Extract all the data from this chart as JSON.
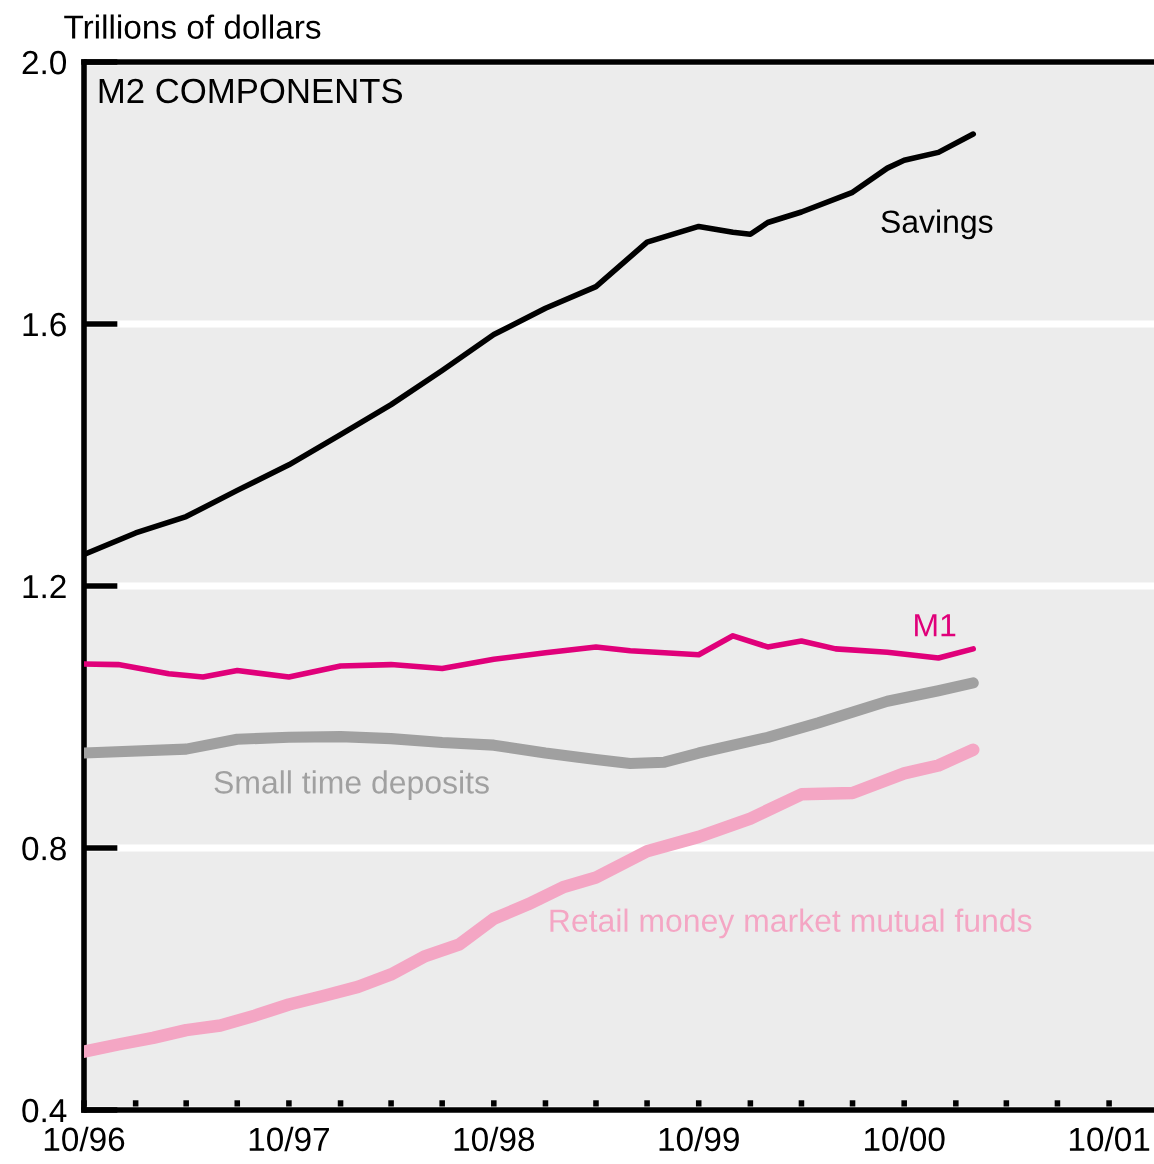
{
  "chart_data": {
    "type": "line",
    "title": "M2 COMPONENTS",
    "ylabel": "Trillions of dollars",
    "series": [
      {
        "name": "Savings",
        "color": "#000000",
        "x": [
          "1996-10",
          "1997-01",
          "1997-04",
          "1997-07",
          "1997-10",
          "1998-01",
          "1998-04",
          "1998-07",
          "1998-10",
          "1999-01",
          "1999-04",
          "1999-07",
          "1999-10",
          "1999-12",
          "2000-01",
          "2000-02",
          "2000-04",
          "2000-07",
          "2000-09",
          "2000-10",
          "2000-12",
          "2001-02"
        ],
        "values": [
          1.248,
          1.281,
          1.306,
          1.346,
          1.385,
          1.431,
          1.477,
          1.529,
          1.584,
          1.624,
          1.657,
          1.725,
          1.749,
          1.74,
          1.737,
          1.755,
          1.771,
          1.801,
          1.838,
          1.85,
          1.862,
          1.89
        ]
      },
      {
        "name": "M1",
        "color": "#e0007a",
        "x": [
          "1996-10",
          "1996-12",
          "1997-03",
          "1997-05",
          "1997-07",
          "1997-10",
          "1998-01",
          "1998-04",
          "1998-07",
          "1998-10",
          "1999-01",
          "1999-04",
          "1999-06",
          "1999-10",
          "1999-12",
          "2000-02",
          "2000-04",
          "2000-06",
          "2000-09",
          "2000-12",
          "2001-02"
        ],
        "values": [
          1.081,
          1.08,
          1.066,
          1.061,
          1.071,
          1.061,
          1.078,
          1.08,
          1.074,
          1.088,
          1.098,
          1.107,
          1.101,
          1.095,
          1.124,
          1.107,
          1.116,
          1.104,
          1.099,
          1.09,
          1.104
        ]
      },
      {
        "name": "Small time deposits",
        "color": "#a0a0a0",
        "x": [
          "1996-10",
          "1997-04",
          "1997-07",
          "1997-10",
          "1998-01",
          "1998-04",
          "1998-07",
          "1998-10",
          "1999-01",
          "1999-04",
          "1999-06",
          "1999-08",
          "1999-10",
          "2000-02",
          "2000-05",
          "2000-09",
          "2000-12",
          "2001-02"
        ],
        "values": [
          0.945,
          0.951,
          0.966,
          0.969,
          0.97,
          0.967,
          0.961,
          0.957,
          0.945,
          0.935,
          0.929,
          0.931,
          0.945,
          0.969,
          0.991,
          1.024,
          1.04,
          1.052
        ]
      },
      {
        "name": "Retail money market mutual funds",
        "color": "#f4a6c4",
        "x": [
          "1996-10",
          "1996-12",
          "1997-02",
          "1997-04",
          "1997-06",
          "1997-08",
          "1997-10",
          "1997-12",
          "1998-02",
          "1998-04",
          "1998-06",
          "1998-08",
          "1998-10",
          "1998-12",
          "1999-02",
          "1999-04",
          "1999-07",
          "1999-10",
          "2000-01",
          "2000-04",
          "2000-07",
          "2000-10",
          "2000-12",
          "2001-02"
        ],
        "values": [
          0.489,
          0.5,
          0.51,
          0.522,
          0.529,
          0.544,
          0.561,
          0.574,
          0.588,
          0.607,
          0.635,
          0.653,
          0.692,
          0.714,
          0.74,
          0.755,
          0.795,
          0.817,
          0.845,
          0.882,
          0.884,
          0.914,
          0.926,
          0.95
        ]
      }
    ],
    "xlim": [
      "1996-10",
      "2001-12-20"
    ],
    "xticks": [
      {
        "value": "1996-10",
        "label": "10/96"
      },
      {
        "value": "1997-01",
        "label": null
      },
      {
        "value": "1997-04",
        "label": null
      },
      {
        "value": "1997-07",
        "label": null
      },
      {
        "value": "1997-10",
        "label": "10/97"
      },
      {
        "value": "1998-01",
        "label": null
      },
      {
        "value": "1998-04",
        "label": null
      },
      {
        "value": "1998-07",
        "label": null
      },
      {
        "value": "1998-10",
        "label": "10/98"
      },
      {
        "value": "1999-01",
        "label": null
      },
      {
        "value": "1999-04",
        "label": null
      },
      {
        "value": "1999-07",
        "label": null
      },
      {
        "value": "1999-10",
        "label": "10/99"
      },
      {
        "value": "2000-01",
        "label": null
      },
      {
        "value": "2000-04",
        "label": null
      },
      {
        "value": "2000-07",
        "label": null
      },
      {
        "value": "2000-10",
        "label": "10/00"
      },
      {
        "value": "2001-01",
        "label": null
      },
      {
        "value": "2001-04",
        "label": null
      },
      {
        "value": "2001-07",
        "label": null
      },
      {
        "value": "2001-10",
        "label": "10/01"
      }
    ],
    "ylim": [
      0.4,
      2.0
    ],
    "yticks": [
      {
        "value": 0.4,
        "label": "0.4"
      },
      {
        "value": 0.8,
        "label": "0.8"
      },
      {
        "value": 1.2,
        "label": "1.2"
      },
      {
        "value": 1.6,
        "label": "1.6"
      },
      {
        "value": 2.0,
        "label": "2.0"
      }
    ],
    "grid": "y",
    "legend": false,
    "marker": "none",
    "line_style": "solid"
  }
}
